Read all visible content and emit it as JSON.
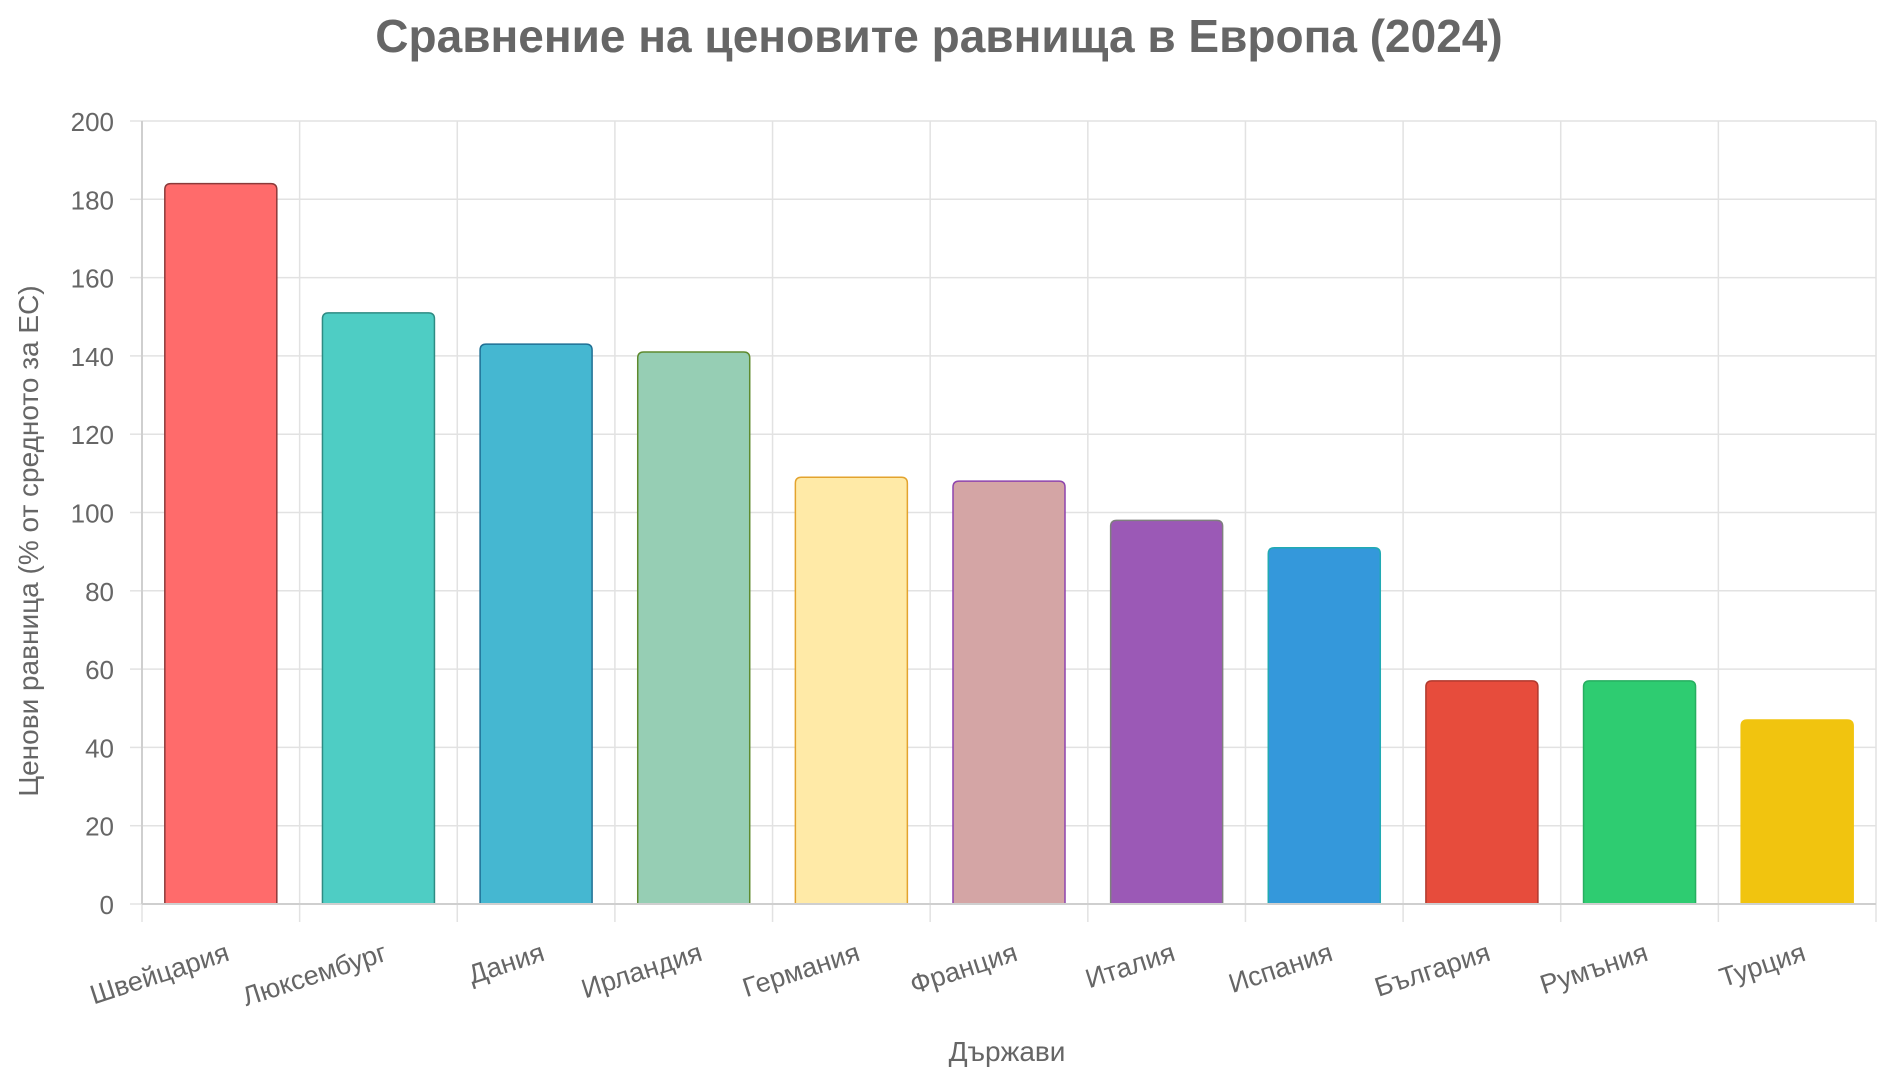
{
  "chart_data": {
    "type": "bar",
    "title": "Сравнение на ценовите равнища в Европа (2024)",
    "xlabel": "Държави",
    "ylabel": "Ценови равница (% от средното за ЕС)",
    "categories": [
      "Швейцария",
      "Люксембург",
      "Дания",
      "Ирландия",
      "Германия",
      "Франция",
      "Италия",
      "Испания",
      "България",
      "Румъния",
      "Турция"
    ],
    "values": [
      184,
      151,
      143,
      141,
      109,
      108,
      98,
      91,
      57,
      57,
      47
    ],
    "ylim": [
      0,
      200
    ],
    "yticks": [
      0,
      20,
      40,
      60,
      80,
      100,
      120,
      140,
      160,
      180,
      200
    ],
    "grid": true,
    "legend": "none",
    "colors": {
      "fill": [
        "#FF6B6B",
        "#4ECDC4",
        "#45B7D1",
        "#96CEB4",
        "#FFEAA7",
        "#D4A5A5",
        "#9B59B6",
        "#3498DB",
        "#E74C3C",
        "#2ECC71",
        "#F1C40F"
      ],
      "stroke": [
        "#8B3A3A",
        "#2E8B83",
        "#1F6F94",
        "#5E8A2E",
        "#E3A32E",
        "#8E44AD",
        "#7F7F7F",
        "#21AAB3",
        "#B03A2E",
        "#27AE60",
        "#F1C40F"
      ],
      "grid": "#e2e2e2",
      "axis": "#cfcfcf",
      "text": "#666666"
    }
  }
}
